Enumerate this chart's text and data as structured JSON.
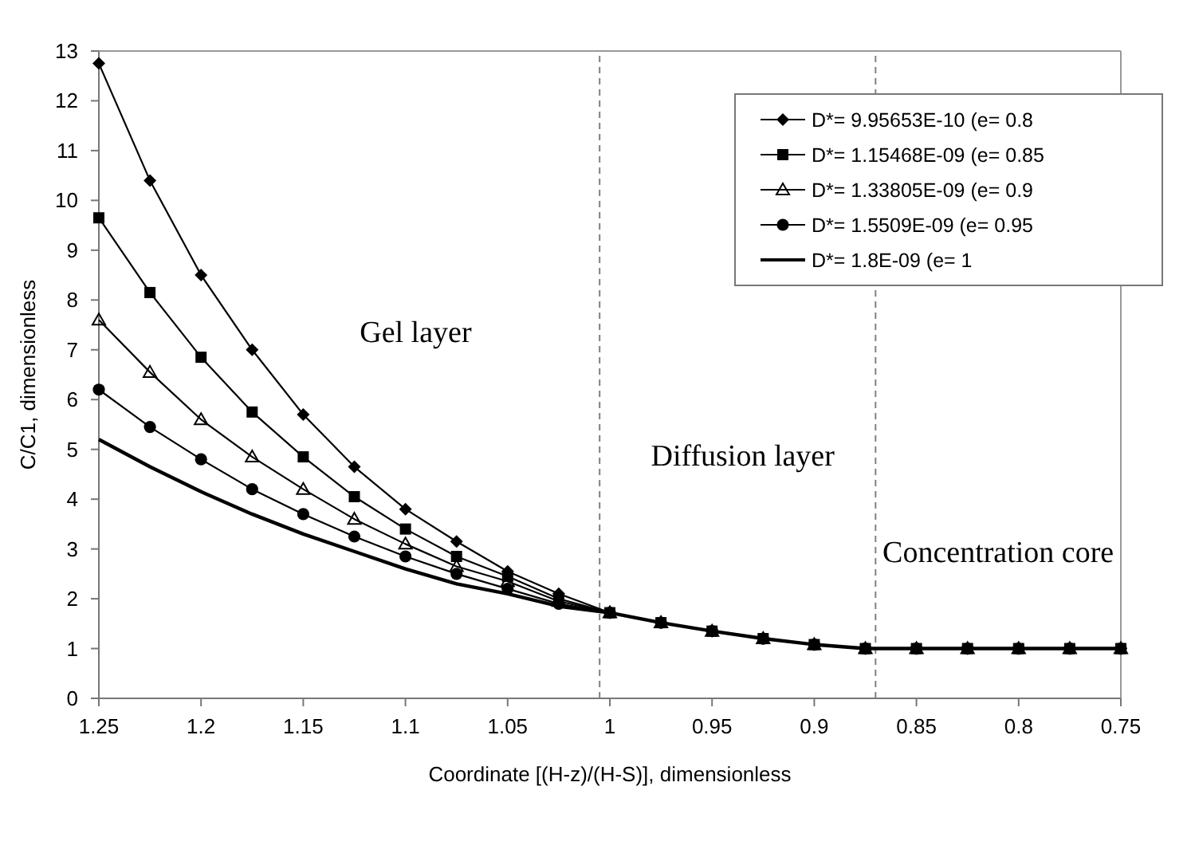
{
  "chart_data": {
    "type": "line",
    "xlabel": "Coordinate [(H-z)/(H-S)], dimensionless",
    "ylabel": "C/C1, dimensionless",
    "x": [
      1.25,
      1.225,
      1.2,
      1.175,
      1.15,
      1.125,
      1.1,
      1.075,
      1.05,
      1.025,
      1.0,
      0.975,
      0.95,
      0.925,
      0.9,
      0.875,
      0.85,
      0.825,
      0.8,
      0.775,
      0.75
    ],
    "xlim": [
      1.25,
      0.75
    ],
    "xticks": [
      {
        "value": 1.25,
        "label": "1.25"
      },
      {
        "value": 1.2,
        "label": "1.2"
      },
      {
        "value": 1.15,
        "label": "1.15"
      },
      {
        "value": 1.1,
        "label": "1.1"
      },
      {
        "value": 1.05,
        "label": "1.05"
      },
      {
        "value": 1.0,
        "label": "1"
      },
      {
        "value": 0.95,
        "label": "0.95"
      },
      {
        "value": 0.9,
        "label": "0.9"
      },
      {
        "value": 0.85,
        "label": "0.85"
      },
      {
        "value": 0.8,
        "label": "0.8"
      },
      {
        "value": 0.75,
        "label": "0.75"
      }
    ],
    "ylim": [
      0,
      13
    ],
    "yticks": [
      0,
      1,
      2,
      3,
      4,
      5,
      6,
      7,
      8,
      9,
      10,
      11,
      12,
      13
    ],
    "grid": false,
    "legend": "top right",
    "line_style": "solid",
    "series": [
      {
        "name": "D*= 9.95653E-10 (e= 0.8",
        "color": "#000000",
        "marker": "diamond",
        "values": [
          12.75,
          10.4,
          8.5,
          7.0,
          5.7,
          4.65,
          3.8,
          3.15,
          2.55,
          2.1,
          1.72,
          1.52,
          1.35,
          1.2,
          1.08,
          1.0,
          1.0,
          1.0,
          1.0,
          1.0,
          1.0
        ]
      },
      {
        "name": "D*= 1.15468E-09 (e= 0.85",
        "color": "#000000",
        "marker": "square",
        "values": [
          9.65,
          8.15,
          6.85,
          5.75,
          4.85,
          4.05,
          3.4,
          2.85,
          2.45,
          2.0,
          1.72,
          1.52,
          1.35,
          1.2,
          1.08,
          1.0,
          1.0,
          1.0,
          1.0,
          1.0,
          1.0
        ]
      },
      {
        "name": "D*= 1.33805E-09 (e= 0.9",
        "color": "#000000",
        "marker": "triangle",
        "values": [
          7.6,
          6.55,
          5.6,
          4.85,
          4.2,
          3.6,
          3.1,
          2.65,
          2.35,
          1.95,
          1.72,
          1.52,
          1.35,
          1.2,
          1.08,
          1.0,
          1.0,
          1.0,
          1.0,
          1.0,
          1.0
        ]
      },
      {
        "name": "D*= 1.5509E-09 (e= 0.95",
        "color": "#000000",
        "marker": "circle",
        "values": [
          6.2,
          5.45,
          4.8,
          4.2,
          3.7,
          3.25,
          2.85,
          2.5,
          2.2,
          1.9,
          1.72,
          1.52,
          1.35,
          1.2,
          1.08,
          1.0,
          1.0,
          1.0,
          1.0,
          1.0,
          1.0
        ]
      },
      {
        "name": "D*= 1.8E-09 (e= 1",
        "color": "#000000",
        "marker": "none",
        "values": [
          5.2,
          4.65,
          4.15,
          3.7,
          3.3,
          2.95,
          2.6,
          2.3,
          2.1,
          1.85,
          1.72,
          1.52,
          1.35,
          1.2,
          1.08,
          1.0,
          1.0,
          1.0,
          1.0,
          1.0,
          1.0
        ]
      }
    ],
    "ref_lines": [
      {
        "axis": "x",
        "value": 1.005,
        "line_style": "dashed",
        "color": "#808080"
      },
      {
        "axis": "x",
        "value": 0.87,
        "line_style": "dashed",
        "color": "#808080"
      }
    ],
    "annotations": [
      "Gel layer",
      "Diffusion layer",
      "Concentration core"
    ]
  }
}
